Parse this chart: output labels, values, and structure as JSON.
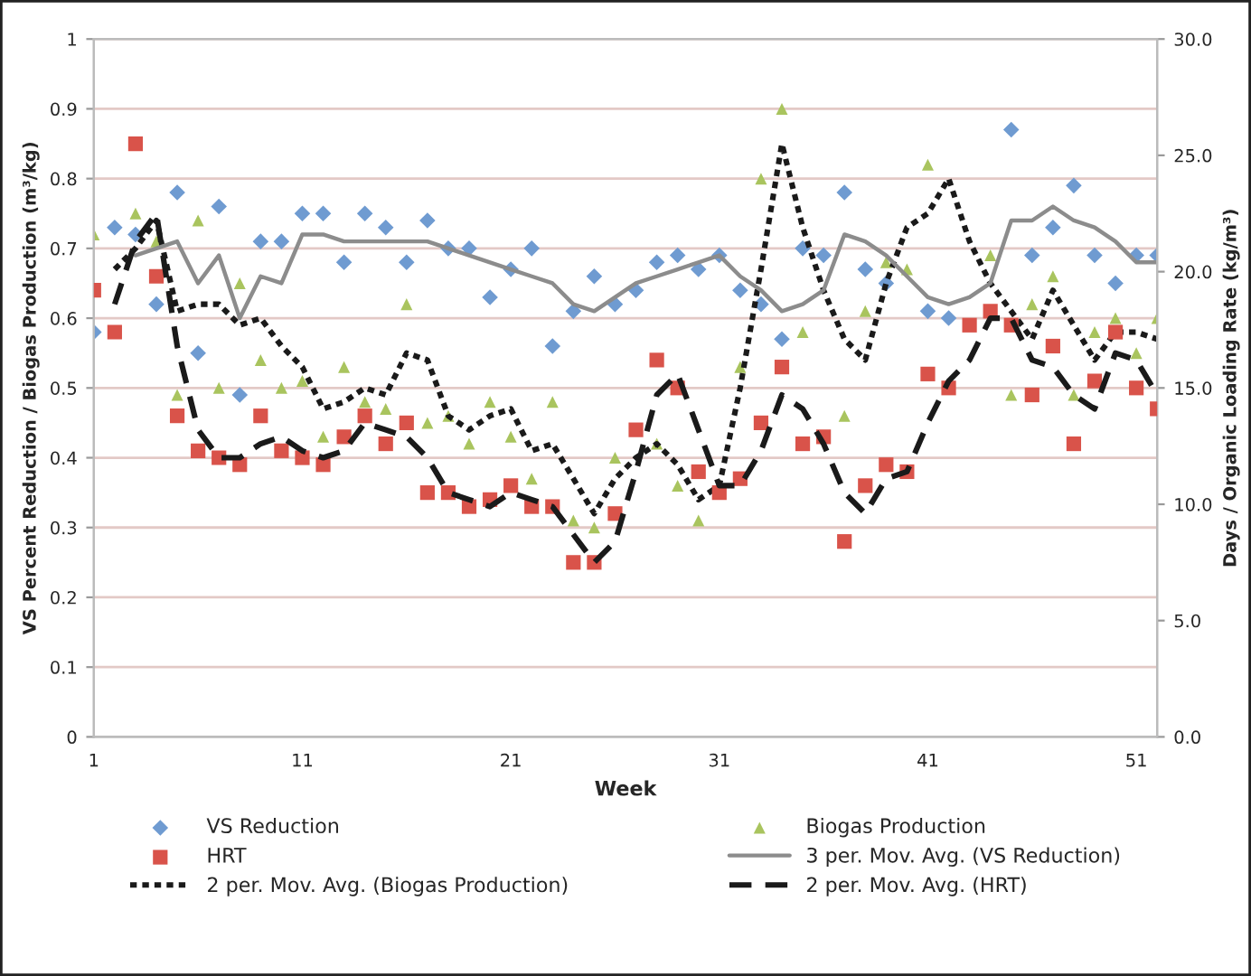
{
  "chart_data": {
    "type": "scatter",
    "xlabel": "Week",
    "ylabel": "VS Percent Reduction / Biogas Production (m³/kg)",
    "y2label": "Days / Organic Loading Rate (kg/m³)",
    "x": [
      1,
      2,
      3,
      4,
      5,
      6,
      7,
      8,
      9,
      10,
      11,
      12,
      13,
      14,
      15,
      16,
      17,
      18,
      19,
      20,
      21,
      22,
      23,
      24,
      25,
      26,
      27,
      28,
      29,
      30,
      31,
      32,
      33,
      34,
      35,
      36,
      37,
      38,
      39,
      40,
      41,
      42,
      43,
      44,
      45,
      46,
      47,
      48,
      49,
      50,
      51,
      52
    ],
    "xlim": [
      1,
      52
    ],
    "xticks": [
      1,
      11,
      21,
      31,
      41,
      51
    ],
    "ylim": [
      0,
      1
    ],
    "yticks": [
      0,
      0.1,
      0.2,
      0.3,
      0.4,
      0.5,
      0.6,
      0.7,
      0.8,
      0.9,
      1
    ],
    "y2lim": [
      0,
      30
    ],
    "y2ticks": [
      {
        "value": 0,
        "label": "0.0"
      },
      {
        "value": 5,
        "label": "5.0"
      },
      {
        "value": 10,
        "label": "10.0"
      },
      {
        "value": 15,
        "label": "15.0"
      },
      {
        "value": 20,
        "label": "20.0"
      },
      {
        "value": 25,
        "label": "25.0"
      },
      {
        "value": 30,
        "label": "30.0"
      }
    ],
    "grid": "y",
    "legend": "bottom",
    "series": [
      {
        "name": "VS Reduction",
        "marker": "diamond",
        "color": "#6f9bd1",
        "values": [
          0.58,
          0.73,
          0.72,
          0.62,
          0.78,
          0.55,
          0.76,
          0.49,
          0.71,
          0.71,
          0.75,
          0.75,
          0.68,
          0.75,
          0.73,
          0.68,
          0.74,
          0.7,
          0.7,
          0.63,
          0.67,
          0.7,
          0.56,
          0.61,
          0.66,
          0.62,
          0.64,
          0.68,
          0.69,
          0.67,
          0.69,
          0.64,
          0.62,
          0.57,
          0.7,
          0.69,
          0.78,
          0.67,
          0.65,
          null,
          0.61,
          0.6,
          null,
          null,
          0.87,
          0.69,
          0.73,
          0.79,
          0.69,
          0.65,
          0.69,
          0.69
        ]
      },
      {
        "name": "HRT",
        "marker": "square",
        "axis": "y2",
        "color": "#d9534a",
        "values": [
          19.2,
          17.4,
          25.5,
          19.8,
          13.8,
          12.3,
          12.0,
          11.7,
          13.8,
          12.3,
          12.0,
          11.7,
          12.9,
          13.8,
          12.6,
          13.5,
          10.5,
          10.5,
          9.9,
          10.2,
          10.8,
          9.9,
          9.9,
          7.5,
          7.5,
          9.6,
          13.2,
          16.2,
          15.0,
          11.4,
          10.5,
          11.1,
          13.5,
          15.9,
          12.6,
          12.9,
          8.4,
          10.8,
          11.7,
          11.4,
          15.6,
          15.0,
          17.7,
          18.3,
          17.7,
          14.7,
          16.8,
          12.6,
          15.3,
          17.4,
          15.0,
          14.1
        ]
      },
      {
        "name": "2 per. Mov. Avg. (Biogas Production)",
        "type": "line",
        "line_style": "dotted",
        "marker": "none",
        "color": "#1a1a1a",
        "values": [
          null,
          0.67,
          0.7,
          0.74,
          0.61,
          0.62,
          0.62,
          0.59,
          0.6,
          0.56,
          0.53,
          0.47,
          0.48,
          0.5,
          0.49,
          0.55,
          0.54,
          0.46,
          0.44,
          0.46,
          0.47,
          0.41,
          0.42,
          0.37,
          0.32,
          0.37,
          0.4,
          0.42,
          0.39,
          0.34,
          0.36,
          0.5,
          0.67,
          0.85,
          0.73,
          0.64,
          0.57,
          0.54,
          0.65,
          0.73,
          0.75,
          0.8,
          0.71,
          0.65,
          0.61,
          0.57,
          0.64,
          0.59,
          0.54,
          0.58,
          0.58,
          0.57
        ]
      },
      {
        "name": "Biogas Production",
        "marker": "triangle",
        "color": "#a9c45e",
        "values": [
          0.72,
          null,
          0.75,
          0.71,
          0.49,
          0.74,
          0.5,
          0.65,
          0.54,
          0.5,
          0.51,
          0.43,
          0.53,
          0.48,
          0.47,
          0.62,
          0.45,
          0.46,
          0.42,
          0.48,
          0.43,
          0.37,
          0.48,
          0.31,
          0.3,
          0.4,
          null,
          0.42,
          0.36,
          0.31,
          null,
          0.53,
          0.8,
          0.9,
          0.58,
          null,
          0.46,
          0.61,
          0.68,
          0.67,
          0.82,
          null,
          null,
          0.69,
          0.49,
          0.62,
          0.66,
          0.49,
          0.58,
          0.6,
          0.55,
          0.6
        ]
      },
      {
        "name": "3 per. Mov. Avg. (VS Reduction)",
        "type": "line",
        "line_style": "solid",
        "marker": "none",
        "color": "#8c8c8c",
        "values": [
          null,
          null,
          0.69,
          0.7,
          0.71,
          0.65,
          0.69,
          0.6,
          0.66,
          0.65,
          0.72,
          0.72,
          0.71,
          0.71,
          0.71,
          0.71,
          0.71,
          0.7,
          0.69,
          0.68,
          0.67,
          0.66,
          0.65,
          0.62,
          0.61,
          0.63,
          0.65,
          0.66,
          0.67,
          0.68,
          0.69,
          0.66,
          0.64,
          0.61,
          0.62,
          0.64,
          0.72,
          0.71,
          0.69,
          0.66,
          0.63,
          0.62,
          0.63,
          0.65,
          0.74,
          0.74,
          0.76,
          0.74,
          0.73,
          0.71,
          0.68,
          0.68
        ]
      },
      {
        "name": "2 per. Mov. Avg. (HRT)",
        "type": "line",
        "line_style": "dashed",
        "marker": "none",
        "axis": "y2",
        "color": "#1a1a1a",
        "values": [
          null,
          18.6,
          21.3,
          22.5,
          16.8,
          13.2,
          12.0,
          12.0,
          12.6,
          12.9,
          12.3,
          12.0,
          12.3,
          13.5,
          13.2,
          12.9,
          12.0,
          10.5,
          10.2,
          9.9,
          10.5,
          10.2,
          9.9,
          8.7,
          7.5,
          8.4,
          11.4,
          14.7,
          15.6,
          13.2,
          10.8,
          10.8,
          12.3,
          14.7,
          14.1,
          12.6,
          10.5,
          9.6,
          11.1,
          11.4,
          13.5,
          15.3,
          16.2,
          18.0,
          18.0,
          16.2,
          15.9,
          14.7,
          14.1,
          16.5,
          16.2,
          14.7
        ]
      }
    ]
  }
}
